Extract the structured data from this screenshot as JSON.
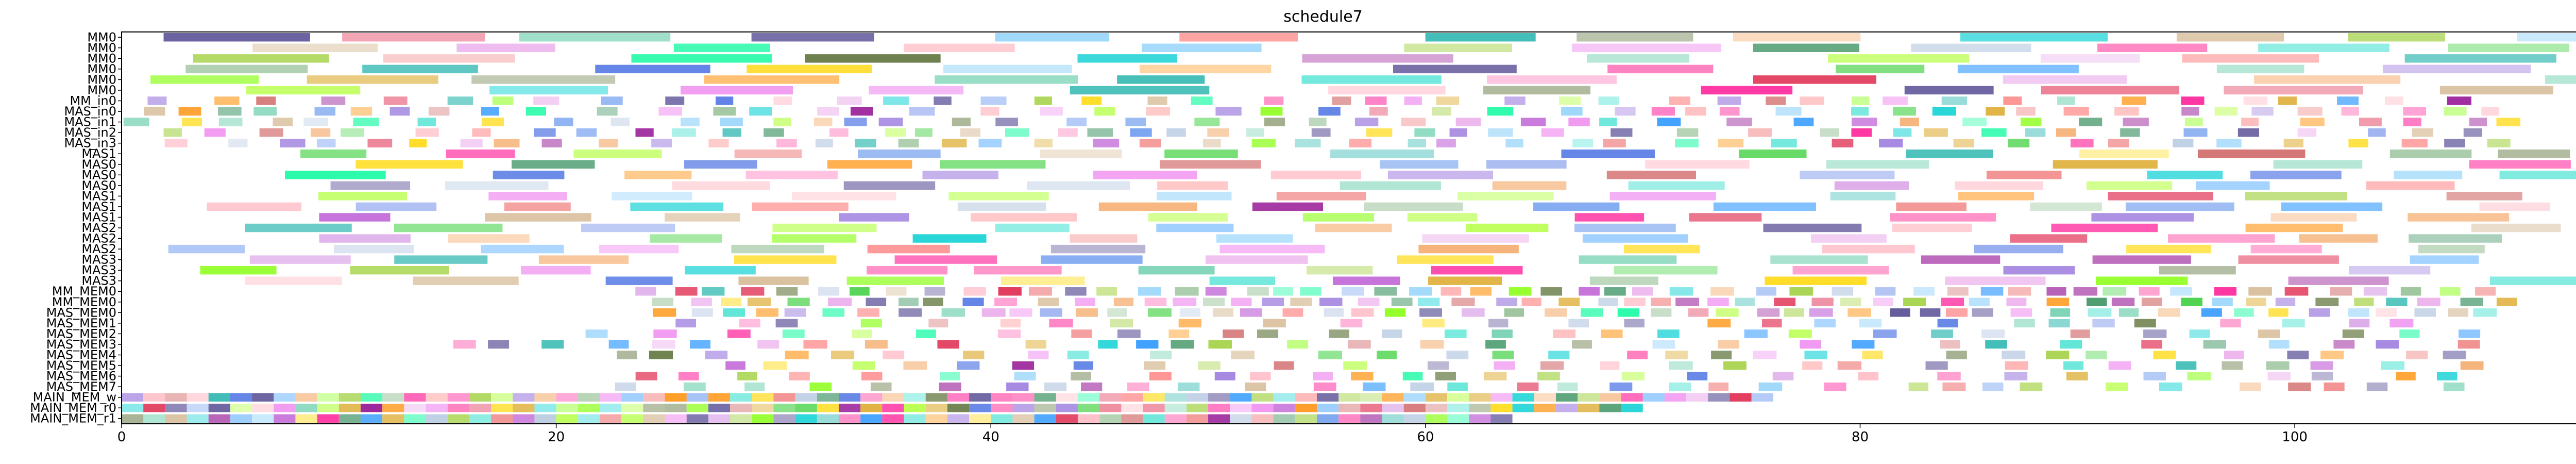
{
  "chart_data": {
    "type": "gantt",
    "title": "schedule7",
    "xlabel": "",
    "ylabel": "",
    "xlim": [
      0,
      116
    ],
    "xticks": [
      0,
      20,
      40,
      60,
      80,
      100
    ],
    "grid": false,
    "legend": "none",
    "rows": [
      "MM0",
      "MM0",
      "MM0",
      "MM0",
      "MM0",
      "MM0",
      "MM_in0",
      "MAS_in0",
      "MAS_in1",
      "MAS_in2",
      "MAS_in3",
      "MAS1",
      "MAS0",
      "MAS0",
      "MAS0",
      "MAS1",
      "MAS1",
      "MAS1",
      "MAS2",
      "MAS2",
      "MAS2",
      "MAS3",
      "MAS3",
      "MAS3",
      "MM_MEM0",
      "MM_MEM0",
      "MAS_MEM0",
      "MAS_MEM1",
      "MAS_MEM2",
      "MAS_MEM3",
      "MAS_MEM4",
      "MAS_MEM5",
      "MAS_MEM6",
      "MAS_MEM7",
      "MAIN_MEM_w",
      "MAIN_MEM_r0",
      "MAIN_MEM_r1"
    ],
    "palette": [
      "#e8a0e8",
      "#7fff00",
      "#8fbc8f",
      "#ff7f7f",
      "#4169e1",
      "#ffd700",
      "#20b2aa",
      "#ff69b4",
      "#9370db",
      "#00ced1",
      "#ff8c00",
      "#32cd32",
      "#dc143c",
      "#6495ed",
      "#ffb6c1",
      "#556b2f",
      "#87cefa",
      "#d2b48c",
      "#ba55d3",
      "#00fa9a",
      "#f08080",
      "#483d8b",
      "#adff2f",
      "#cd5c5c",
      "#40e0d0",
      "#ee82ee",
      "#b0c4de",
      "#f4a460",
      "#2e8b57",
      "#ff1493",
      "#9acd32",
      "#1e90ff",
      "#daa520",
      "#8b008b",
      "#66cdaa"
    ],
    "seed": 7
  }
}
